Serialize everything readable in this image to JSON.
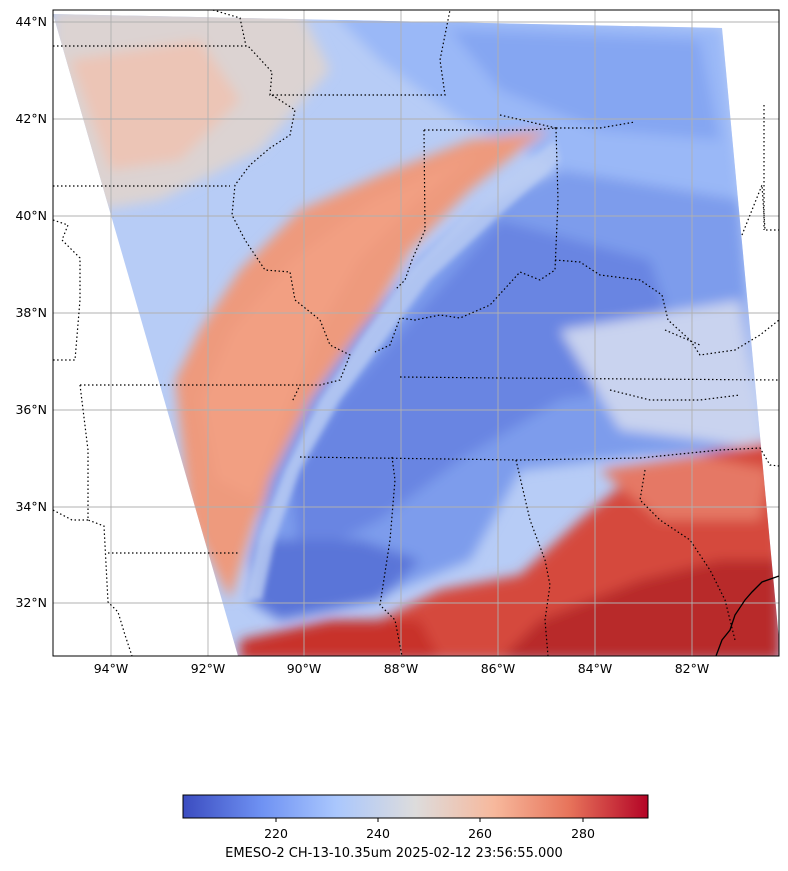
{
  "map": {
    "lat_range": [
      30.95,
      44.28
    ],
    "lon_range": [
      -95.2,
      -80.2
    ],
    "lat_ticks": [
      "32°N",
      "34°N",
      "36°N",
      "38°N",
      "40°N",
      "42°N",
      "44°N"
    ],
    "lat_values": [
      32,
      34,
      36,
      38,
      40,
      42,
      44
    ],
    "lon_ticks": [
      "94°W",
      "92°W",
      "90°W",
      "88°W",
      "86°W",
      "84°W",
      "82°W"
    ],
    "lon_values": [
      -94,
      -92,
      -90,
      -88,
      -86,
      -84,
      -82
    ],
    "gridlines": true,
    "borders": "dotted state/country borders",
    "gridline_color": "#b0b0b0"
  },
  "colorbar": {
    "colormap": "coolwarm",
    "range": [
      201,
      292
    ],
    "ticks": [
      "220",
      "240",
      "260",
      "280"
    ],
    "tick_values": [
      220,
      240,
      260,
      280
    ],
    "label": "EMESO-2 CH-13-10.35um 2025-02-12 23:56:55.000",
    "colors": [
      "#3b4cc0",
      "#6f92f3",
      "#aac7fd",
      "#dddcdc",
      "#f7b89c",
      "#e7745b",
      "#b40426"
    ]
  },
  "image_layer": {
    "description": "",
    "cold_color": "#4e6fe0",
    "warm_color": "#c8302b"
  }
}
